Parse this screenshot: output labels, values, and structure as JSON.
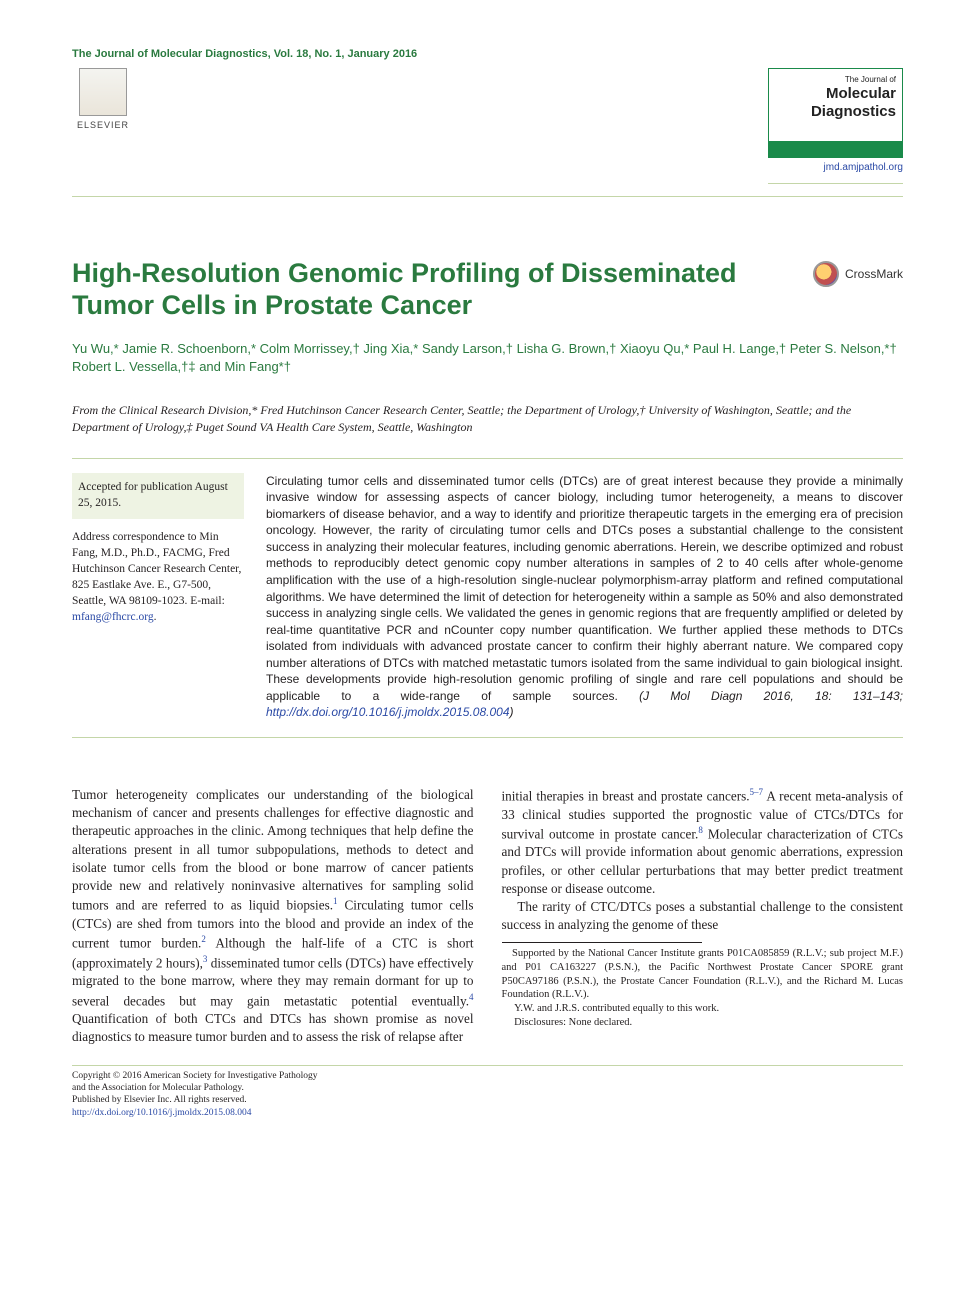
{
  "colors": {
    "brand_green": "#2a7a3f",
    "link_blue": "#2a49a5",
    "rule_green": "#c4d6a8",
    "text": "#231f20",
    "meta_bg": "#eef3e3"
  },
  "header": {
    "journal_issue": "The Journal of Molecular Diagnostics, Vol. 18, No. 1, January 2016",
    "publisher_label": "ELSEVIER",
    "journal_cover_line1": "The Journal of",
    "journal_cover_line2a": "Molecular",
    "journal_cover_line2b": "Diagnostics",
    "journal_url": "jmd.amjpathol.org"
  },
  "article": {
    "title": "High-Resolution Genomic Profiling of Disseminated Tumor Cells in Prostate Cancer",
    "crossmark_label": "CrossMark",
    "authors_html": "Yu Wu,* Jamie R. Schoenborn,* Colm Morrissey,† Jing Xia,* Sandy Larson,† Lisha G. Brown,† Xiaoyu Qu,* Paul H. Lange,† Peter S. Nelson,*† Robert L. Vessella,†‡ and Min Fang*†",
    "affiliations": "From the Clinical Research Division,* Fred Hutchinson Cancer Research Center, Seattle; the Department of Urology,† University of Washington, Seattle; and the Department of Urology,‡ Puget Sound VA Health Care System, Seattle, Washington"
  },
  "meta": {
    "accepted": "Accepted for publication August 25, 2015.",
    "correspondence": "Address correspondence to Min Fang, M.D., Ph.D., FACMG, Fred Hutchinson Cancer Research Center, 825 Eastlake Ave. E., G7-500, Seattle, WA 98109-1023. E-mail: ",
    "email": "mfang@fhcrc.org",
    "email_suffix": "."
  },
  "abstract": {
    "text": "Circulating tumor cells and disseminated tumor cells (DTCs) are of great interest because they provide a minimally invasive window for assessing aspects of cancer biology, including tumor heterogeneity, a means to discover biomarkers of disease behavior, and a way to identify and prioritize therapeutic targets in the emerging era of precision oncology. However, the rarity of circulating tumor cells and DTCs poses a substantial challenge to the consistent success in analyzing their molecular features, including genomic aberrations. Herein, we describe optimized and robust methods to reproducibly detect genomic copy number alterations in samples of 2 to 40 cells after whole-genome amplification with the use of a high-resolution single-nuclear polymorphism-array platform and refined computational algorithms. We have determined the limit of detection for heterogeneity within a sample as 50% and also demonstrated success in analyzing single cells. We validated the genes in genomic regions that are frequently amplified or deleted by real-time quantitative PCR and nCounter copy number quantification. We further applied these methods to DTCs isolated from individuals with advanced prostate cancer to confirm their highly aberrant nature. We compared copy number alterations of DTCs with matched metastatic tumors isolated from the same individual to gain biological insight. These developments provide high-resolution genomic profiling of single and rare cell populations and should be applicable to a wide-range of sample sources.",
    "citation": "(J Mol Diagn 2016, 18: 131–143; ",
    "doi_url": "http://dx.doi.org/10.1016/j.jmoldx.2015.08.004",
    "citation_close": ")"
  },
  "body": {
    "p1": "Tumor heterogeneity complicates our understanding of the biological mechanism of cancer and presents challenges for effective diagnostic and therapeutic approaches in the clinic. Among techniques that help define the alterations present in all tumor subpopulations, methods to detect and isolate tumor cells from the blood or bone marrow of cancer patients provide new and relatively noninvasive alternatives for sampling solid tumors and are referred to as liquid biopsies.",
    "p1b": " Circulating tumor cells (CTCs) are shed from tumors into the blood and provide an index of the current tumor burden.",
    "p1c": " Although the half-life of a CTC is short (approximately 2 hours),",
    "p1d": " disseminated tumor cells (DTCs) have effectively migrated to the bone marrow, where they may remain dormant for up to several decades but may gain metastatic potential eventually.",
    "p1e": " Quantification of both CTCs and DTCs has shown promise as novel diagnostics to measure tumor burden and to assess the risk of relapse after",
    "p2a": "initial therapies in breast and prostate cancers.",
    "p2b": " A recent meta-analysis of 33 clinical studies supported the prognostic value of CTCs/DTCs for survival outcome in prostate cancer.",
    "p2c": " Molecular characterization of CTCs and DTCs will provide information about genomic aberrations, expression profiles, or other cellular perturbations that may better predict treatment response or disease outcome.",
    "p3": "The rarity of CTC/DTCs poses a substantial challenge to the consistent success in analyzing the genome of these",
    "refs": {
      "r1": "1",
      "r2": "2",
      "r3": "3",
      "r4": "4",
      "r57": "5–7",
      "r8": "8"
    }
  },
  "footnotes": {
    "support": "Supported by the National Cancer Institute grants P01CA085859 (R.L.V.; sub project M.F.) and P01 CA163227 (P.S.N.), the Pacific Northwest Prostate Cancer SPORE grant P50CA97186 (P.S.N.), the Prostate Cancer Foundation (R.L.V.), and the Richard M. Lucas Foundation (R.L.V.).",
    "contrib": "Y.W. and J.R.S. contributed equally to this work.",
    "disclosures": "Disclosures: None declared."
  },
  "footer": {
    "copyright_l1": "Copyright © 2016 American Society for Investigative Pathology",
    "copyright_l2": "and the Association for Molecular Pathology.",
    "copyright_l3": "Published by Elsevier Inc. All rights reserved.",
    "doi": "http://dx.doi.org/10.1016/j.jmoldx.2015.08.004"
  }
}
